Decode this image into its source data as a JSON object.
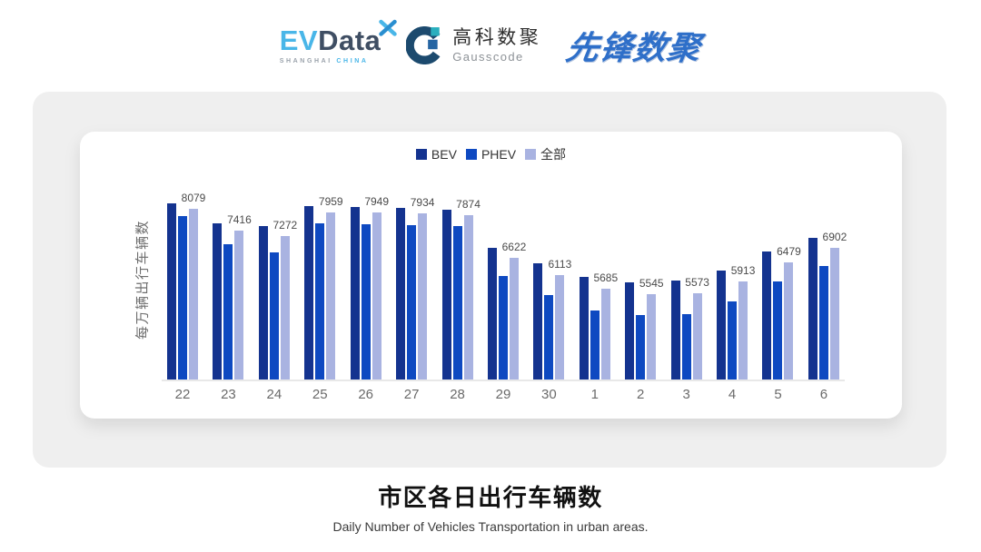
{
  "header": {
    "evdata": {
      "ev": "EV",
      "data": "Data",
      "sub_left": "SHANGHAI",
      "sub_right": "CHINA",
      "ev_color": "#49B6E8",
      "data_color": "#3F4E63"
    },
    "gausscode": {
      "cn": "高科数聚",
      "en": "Gausscode",
      "mark_ring_color": "#1C4A6E",
      "mark_teal_color": "#29AFBE",
      "mark_blue_color": "#2565A3"
    },
    "pioneer": {
      "text": "先锋数聚",
      "color": "#2E6FC9"
    }
  },
  "chart_data": {
    "type": "bar",
    "title": "市区各日出行车辆数",
    "subtitle": "Daily Number of Vehicles Transportation in urban areas.",
    "ylabel": "每万辆出行车辆数",
    "xlabel": "",
    "legend_position": "top",
    "grid": false,
    "ylim": [
      3000,
      8500
    ],
    "categories": [
      "22",
      "23",
      "24",
      "25",
      "26",
      "27",
      "28",
      "29",
      "30",
      "1",
      "2",
      "3",
      "4",
      "5",
      "6"
    ],
    "series": [
      {
        "name": "BEV",
        "color": "#14338F",
        "show_labels": false,
        "values": [
          8230,
          7650,
          7550,
          8140,
          8120,
          8110,
          8030,
          6910,
          6450,
          6050,
          5890,
          5940,
          6250,
          6790,
          7220
        ]
      },
      {
        "name": "PHEV",
        "color": "#0E49C1",
        "show_labels": false,
        "values": [
          7850,
          7010,
          6770,
          7630,
          7600,
          7580,
          7550,
          6080,
          5520,
          5040,
          4920,
          4930,
          5330,
          5910,
          6360
        ]
      },
      {
        "name": "全部",
        "color": "#A9B3E1",
        "show_labels": true,
        "values": [
          8079,
          7416,
          7272,
          7959,
          7949,
          7934,
          7874,
          6622,
          6113,
          5685,
          5545,
          5573,
          5913,
          6479,
          6902
        ]
      }
    ]
  }
}
